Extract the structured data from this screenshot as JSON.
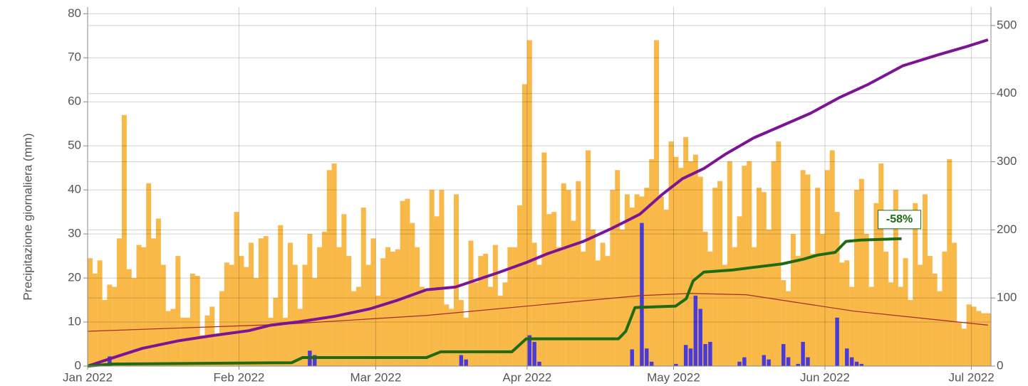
{
  "chart_data": {
    "type": "bar",
    "ylabel": "Precipitazione giornaliera (mm)",
    "xlim": [
      0,
      185
    ],
    "xticks": [
      {
        "value": 0,
        "label": "Jan 2022"
      },
      {
        "value": 31,
        "label": "Feb 2022"
      },
      {
        "value": 59,
        "label": "Mar 2022"
      },
      {
        "value": 90,
        "label": "Apr 2022"
      },
      {
        "value": 120,
        "label": "May 2022"
      },
      {
        "value": 151,
        "label": "Jun 2022"
      },
      {
        "value": 181,
        "label": "Jul 2022"
      }
    ],
    "ylim": [
      0,
      81.5
    ],
    "yticks": [
      0,
      10,
      20,
      30,
      40,
      50,
      60,
      70,
      80
    ],
    "y2lim": [
      0,
      527
    ],
    "y2ticks": [
      0,
      100,
      200,
      300,
      400,
      500
    ],
    "grid": true,
    "series": [
      {
        "type": "bar",
        "color": "#f9b949",
        "values": [
          24.5,
          21,
          24,
          15,
          18.5,
          18,
          29,
          57,
          22,
          20,
          27.5,
          27,
          41.5,
          29,
          33.5,
          23,
          12.5,
          13,
          25,
          11,
          11,
          21,
          20.5,
          7,
          11.5,
          13.5,
          7,
          17,
          23.5,
          23,
          35,
          25,
          22.5,
          28,
          20,
          29,
          29.5,
          11,
          15.5,
          32,
          11,
          28,
          23,
          13,
          23,
          30,
          20,
          27,
          30.5,
          44.5,
          46,
          27,
          34.5,
          25,
          17,
          18,
          36,
          23,
          29,
          16,
          24.5,
          27,
          26,
          26.5,
          37.5,
          38,
          32.5,
          27,
          18,
          17,
          40,
          34,
          40,
          14,
          13,
          39,
          15,
          11,
          28.5,
          19,
          25,
          25.5,
          18,
          27.5,
          16,
          19,
          27,
          27,
          36.5,
          64,
          74,
          28,
          23,
          48.5,
          34.5,
          35,
          27,
          41.5,
          40,
          33,
          42,
          26,
          49,
          31,
          24,
          28,
          25,
          40,
          44.5,
          31,
          39,
          36,
          39,
          38.5,
          40.5,
          47,
          74,
          38.5,
          35.5,
          51,
          47.5,
          45,
          52,
          46.5,
          48,
          43,
          30.5,
          26,
          40.5,
          42,
          23,
          46.5,
          27,
          34,
          45.5,
          46.5,
          27,
          40.5,
          39.5,
          31,
          46.5,
          51,
          19.5,
          17,
          30,
          25,
          44.5,
          43.5,
          25.5,
          40.5,
          30,
          44.5,
          49,
          35,
          23.5,
          24,
          18,
          40,
          42.5,
          30,
          18,
          37,
          46,
          26,
          19,
          40,
          18,
          24.5,
          15,
          37,
          23,
          39,
          25,
          21,
          17,
          26,
          47,
          28,
          10,
          8.5,
          14,
          13.5,
          12.5,
          12,
          12
        ]
      },
      {
        "type": "bar",
        "color": "#4a3bd8",
        "values": [
          0,
          0,
          0,
          0,
          2.2,
          0,
          0,
          0,
          0,
          0,
          0,
          0,
          0,
          0,
          0,
          0,
          0,
          0,
          0,
          0,
          0,
          0,
          0,
          0,
          0,
          0,
          0,
          0,
          0,
          0,
          0,
          0,
          0,
          0,
          0,
          0,
          0,
          0,
          0,
          0,
          0,
          0,
          0,
          0,
          0,
          3.5,
          2.5,
          0,
          0,
          0,
          0,
          0,
          0,
          0,
          0,
          0,
          0,
          0,
          0,
          0,
          0,
          0,
          0,
          0,
          0,
          0,
          0,
          0,
          0,
          0,
          0,
          0,
          0,
          0,
          0,
          0,
          2.5,
          1.5,
          0,
          0,
          0,
          0,
          0,
          0,
          0,
          0,
          0,
          0,
          0,
          0,
          7,
          5.5,
          1,
          0,
          0,
          0,
          0,
          0,
          0,
          0,
          0,
          0,
          0,
          0,
          0,
          0,
          0,
          0,
          0,
          0,
          0,
          3.8,
          0,
          32.5,
          4,
          1,
          0,
          0,
          0,
          0,
          0.5,
          0,
          4.8,
          4,
          16,
          13,
          5,
          5.5,
          0,
          0,
          0,
          0,
          0,
          1,
          2,
          0,
          0,
          0,
          2.5,
          1.5,
          0,
          0,
          5,
          2,
          0,
          0.5,
          5.5,
          2,
          0,
          0,
          0,
          0,
          0,
          11,
          0,
          4,
          2,
          1,
          0.5,
          0,
          0,
          0,
          0,
          0,
          0,
          0,
          0,
          0,
          0,
          0,
          0,
          0,
          0,
          0,
          0,
          0,
          0,
          0,
          0,
          0,
          0,
          0,
          0,
          0,
          0
        ]
      },
      {
        "type": "line",
        "color": "#a52a2a",
        "width": 1.2,
        "x": [
          0,
          40.3,
          69.4,
          98.5,
          113.1,
          123.3,
          134.9,
          156.8,
          184.4
        ],
        "values": [
          7.9,
          9.5,
          11.5,
          14.5,
          16,
          16.5,
          16.2,
          12.5,
          9.3
        ]
      },
      {
        "type": "line",
        "axis": "y2",
        "color": "#7b1593",
        "width": 4,
        "x": [
          0,
          6.8,
          11.2,
          18.5,
          25.8,
          33,
          37.4,
          43.2,
          50.5,
          57.8,
          63.6,
          69.4,
          75.3,
          78.2,
          84,
          89.8,
          94.2,
          101.5,
          107.3,
          113.1,
          117.5,
          121.8,
          126.2,
          130.6,
          136.4,
          142.2,
          148,
          153.9,
          159.7,
          167,
          174.2,
          180,
          184.4
        ],
        "values": [
          0,
          16,
          26,
          37,
          45,
          52,
          60,
          65,
          73,
          84,
          97,
          112,
          116,
          123,
          137,
          152,
          165,
          183,
          202,
          223,
          251,
          275,
          290,
          311,
          335,
          353,
          371,
          394,
          413,
          441,
          457,
          469,
          479
        ]
      },
      {
        "type": "line",
        "axis": "y2",
        "color": "#1e6b12",
        "width": 4,
        "x": [
          0,
          5,
          41.8,
          44,
          69.4,
          72.3,
          86.9,
          89.8,
          108.7,
          110.2,
          112.1,
          120.4,
          122.6,
          124,
          126.2,
          132,
          136.4,
          142.2,
          146.6,
          149.5,
          153.1,
          155.3,
          158.2,
          166.7
        ],
        "values": [
          0,
          3,
          5,
          12.5,
          12.5,
          21,
          21,
          40,
          40,
          51,
          86,
          88,
          99,
          125,
          138,
          141,
          145,
          150,
          157,
          163,
          167,
          183,
          185,
          187
        ]
      }
    ],
    "annotations": [
      {
        "text": "-58%",
        "x": 166.7,
        "y": 187,
        "axis": "y2",
        "color": "#1e6b12"
      }
    ]
  }
}
